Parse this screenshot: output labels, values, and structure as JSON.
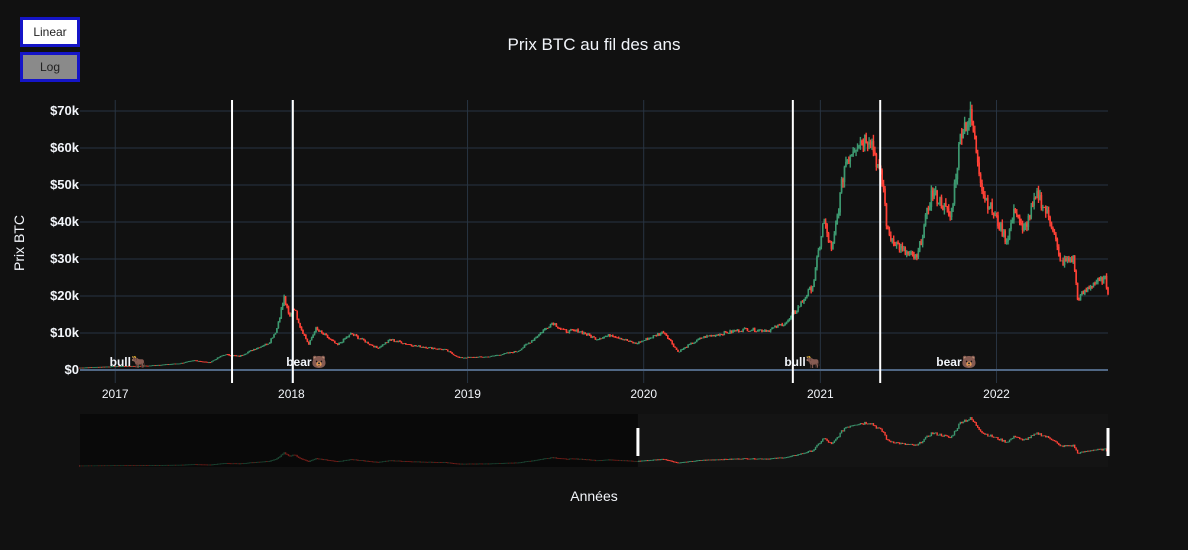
{
  "buttons": {
    "linear": "Linear",
    "log": "Log"
  },
  "chart_data": {
    "type": "candlestick",
    "title": "Prix BTC au fil des ans",
    "xlabel": "Années",
    "ylabel": "Prix BTC",
    "x_ticks": [
      "2017",
      "2018",
      "2019",
      "2020",
      "2021",
      "2022"
    ],
    "y_ticks": [
      "$0",
      "$10k",
      "$20k",
      "$30k",
      "$40k",
      "$50k",
      "$60k",
      "$70k"
    ],
    "xlim": [
      "2016-10-20",
      "2022-08-20"
    ],
    "ylim": [
      0,
      72000
    ],
    "colors": {
      "up": "#3d9970",
      "down": "#ff4136",
      "grid": "#283442",
      "marker": "#ffffff"
    },
    "closes": [
      {
        "date": "2016-10-20",
        "price": 630
      },
      {
        "date": "2017-01-01",
        "price": 1000
      },
      {
        "date": "2017-03-10",
        "price": 1150
      },
      {
        "date": "2017-05-15",
        "price": 1800
      },
      {
        "date": "2017-06-15",
        "price": 2600
      },
      {
        "date": "2017-07-15",
        "price": 2000
      },
      {
        "date": "2017-08-15",
        "price": 4200
      },
      {
        "date": "2017-09-15",
        "price": 3700
      },
      {
        "date": "2017-10-15",
        "price": 5600
      },
      {
        "date": "2017-11-15",
        "price": 7300
      },
      {
        "date": "2017-12-01",
        "price": 10800
      },
      {
        "date": "2017-12-17",
        "price": 19500
      },
      {
        "date": "2017-12-28",
        "price": 14200
      },
      {
        "date": "2018-01-06",
        "price": 17200
      },
      {
        "date": "2018-01-20",
        "price": 11500
      },
      {
        "date": "2018-02-06",
        "price": 6900
      },
      {
        "date": "2018-02-20",
        "price": 11200
      },
      {
        "date": "2018-03-20",
        "price": 8500
      },
      {
        "date": "2018-04-06",
        "price": 6700
      },
      {
        "date": "2018-05-05",
        "price": 9800
      },
      {
        "date": "2018-06-28",
        "price": 5900
      },
      {
        "date": "2018-07-25",
        "price": 8200
      },
      {
        "date": "2018-09-15",
        "price": 6500
      },
      {
        "date": "2018-11-15",
        "price": 5500
      },
      {
        "date": "2018-12-15",
        "price": 3300
      },
      {
        "date": "2019-02-15",
        "price": 3600
      },
      {
        "date": "2019-04-15",
        "price": 5100
      },
      {
        "date": "2019-05-15",
        "price": 8000
      },
      {
        "date": "2019-06-26",
        "price": 12900
      },
      {
        "date": "2019-07-20",
        "price": 10500
      },
      {
        "date": "2019-08-20",
        "price": 10600
      },
      {
        "date": "2019-09-25",
        "price": 8400
      },
      {
        "date": "2019-10-26",
        "price": 9500
      },
      {
        "date": "2019-12-15",
        "price": 7100
      },
      {
        "date": "2020-02-12",
        "price": 10300
      },
      {
        "date": "2020-03-12",
        "price": 4900
      },
      {
        "date": "2020-05-01",
        "price": 8800
      },
      {
        "date": "2020-07-27",
        "price": 11000
      },
      {
        "date": "2020-09-15",
        "price": 10700
      },
      {
        "date": "2020-10-25",
        "price": 13000
      },
      {
        "date": "2020-11-25",
        "price": 18500
      },
      {
        "date": "2020-12-17",
        "price": 23000
      },
      {
        "date": "2021-01-08",
        "price": 40500
      },
      {
        "date": "2021-01-25",
        "price": 31500
      },
      {
        "date": "2021-02-21",
        "price": 56000
      },
      {
        "date": "2021-03-13",
        "price": 61000
      },
      {
        "date": "2021-04-14",
        "price": 63500
      },
      {
        "date": "2021-05-12",
        "price": 49000
      },
      {
        "date": "2021-05-20",
        "price": 37000
      },
      {
        "date": "2021-06-22",
        "price": 32000
      },
      {
        "date": "2021-07-20",
        "price": 30000
      },
      {
        "date": "2021-08-20",
        "price": 48000
      },
      {
        "date": "2021-09-10",
        "price": 45000
      },
      {
        "date": "2021-09-28",
        "price": 41000
      },
      {
        "date": "2021-10-20",
        "price": 65000
      },
      {
        "date": "2021-11-09",
        "price": 68500
      },
      {
        "date": "2021-12-04",
        "price": 48000
      },
      {
        "date": "2022-01-22",
        "price": 35000
      },
      {
        "date": "2022-02-10",
        "price": 44000
      },
      {
        "date": "2022-02-24",
        "price": 37000
      },
      {
        "date": "2022-03-28",
        "price": 47500
      },
      {
        "date": "2022-04-30",
        "price": 38000
      },
      {
        "date": "2022-05-12",
        "price": 29000
      },
      {
        "date": "2022-06-10",
        "price": 30000
      },
      {
        "date": "2022-06-18",
        "price": 19000
      },
      {
        "date": "2022-07-20",
        "price": 23500
      },
      {
        "date": "2022-08-14",
        "price": 24500
      },
      {
        "date": "2022-08-20",
        "price": 21200
      }
    ],
    "markers": [
      {
        "date": "2017-08-31"
      },
      {
        "date": "2018-01-04"
      },
      {
        "date": "2020-11-05"
      },
      {
        "date": "2021-05-05"
      }
    ],
    "annotations": [
      {
        "date": "2017-01-27",
        "text": "bull🐂"
      },
      {
        "date": "2018-02-01",
        "text": "bear🐻"
      },
      {
        "date": "2020-11-25",
        "text": "bull🐂"
      },
      {
        "date": "2021-10-10",
        "text": "bear🐻"
      }
    ],
    "rangeslider": {
      "range": [
        "2019-12-20",
        "2022-08-20"
      ]
    }
  }
}
